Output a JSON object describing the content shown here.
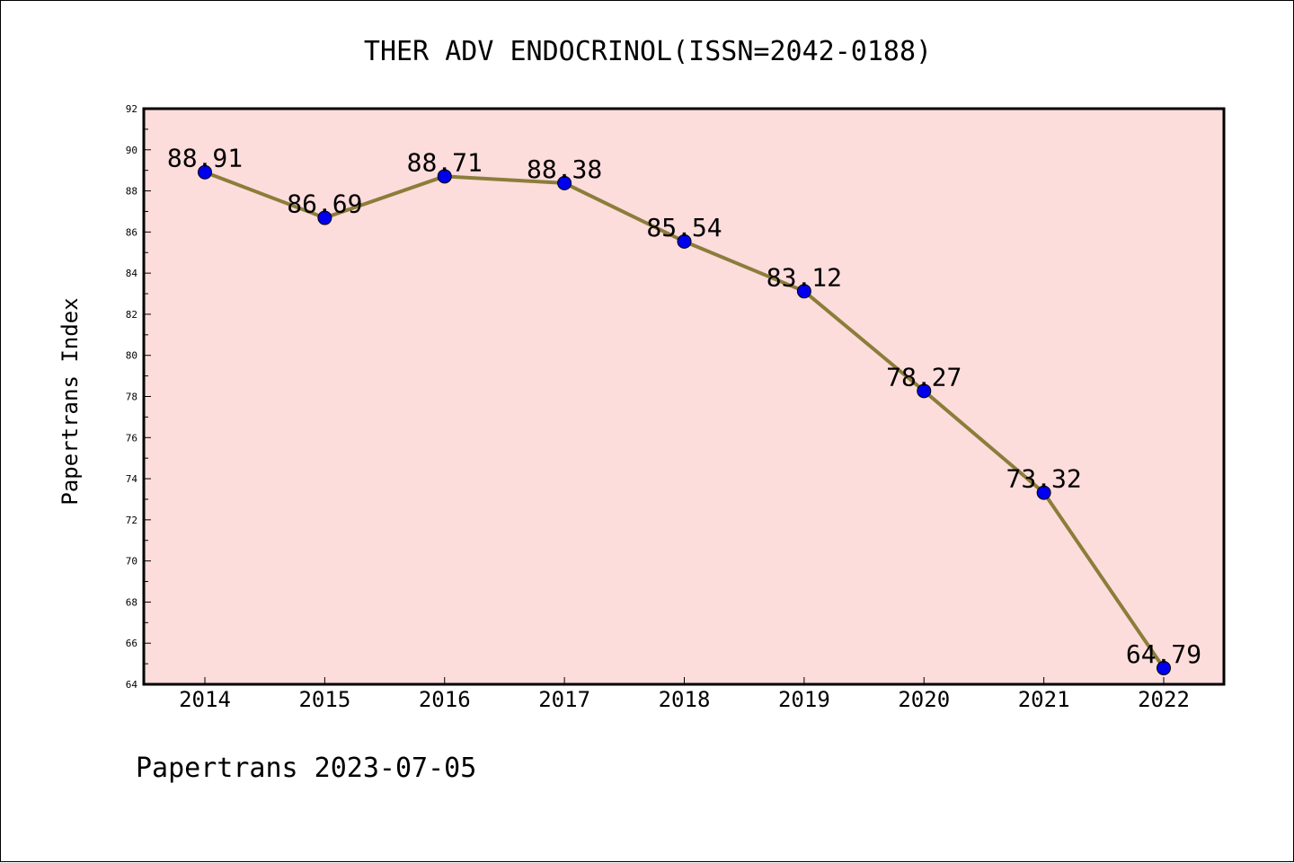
{
  "chart_data": {
    "type": "line",
    "title": "THER ADV ENDOCRINOL(ISSN=2042-0188)",
    "xlabel": "",
    "ylabel": "Papertrans Index",
    "categories": [
      "2014",
      "2015",
      "2016",
      "2017",
      "2018",
      "2019",
      "2020",
      "2021",
      "2022"
    ],
    "series": [
      {
        "values": [
          88.91,
          86.69,
          88.71,
          88.38,
          85.54,
          83.12,
          78.27,
          73.32,
          64.79
        ],
        "labels": [
          "88.91",
          "86.69",
          "88.71",
          "88.38",
          "85.54",
          "83.12",
          "78.27",
          "73.32",
          "64.79"
        ]
      }
    ],
    "ylim": [
      64,
      92
    ],
    "yticks": [
      "64",
      "66",
      "68",
      "70",
      "72",
      "74",
      "76",
      "78",
      "80",
      "82",
      "84",
      "86",
      "88",
      "90",
      "92"
    ],
    "grid": false,
    "colors": {
      "plot_background": "#fddcdc",
      "line": "#8b7d3a",
      "marker": "#0000ee",
      "axis": "#000000"
    }
  },
  "footer": "Papertrans 2023-07-05"
}
